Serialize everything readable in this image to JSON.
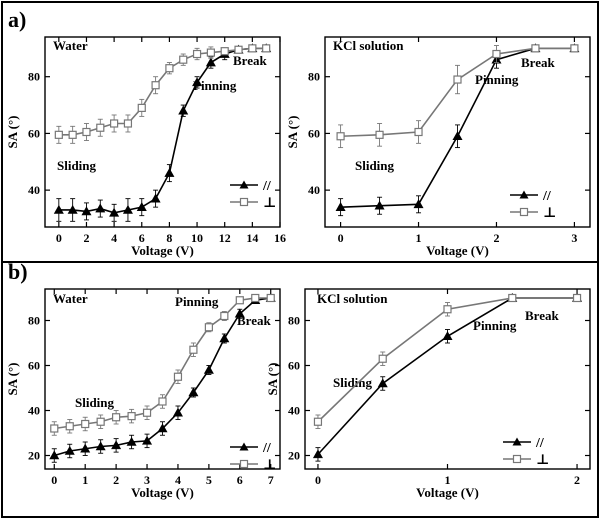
{
  "chart_data": [
    {
      "id": "a-water",
      "type": "line",
      "panel": "a)",
      "annotation": "Water",
      "xlabel": "Voltage (V)",
      "ylabel": "SA (°)",
      "xlim": [
        -1,
        16
      ],
      "ylim": [
        27,
        94
      ],
      "xticks": [
        0,
        2,
        4,
        6,
        8,
        10,
        12,
        14,
        16
      ],
      "yticks": [
        40,
        60,
        80
      ],
      "regions": [
        "Sliding",
        "Pinning",
        "Break"
      ],
      "series": [
        {
          "name": "//",
          "marker": "filled-triangle",
          "x": [
            0,
            1,
            2,
            3,
            4,
            5,
            6,
            7,
            8,
            9,
            10,
            11,
            12,
            13,
            14,
            15
          ],
          "y": [
            33,
            33,
            32.5,
            33.5,
            32,
            33,
            34,
            37,
            46,
            68,
            78,
            85,
            88,
            89.5,
            90,
            90
          ],
          "err": [
            4,
            4,
            3,
            3,
            3,
            4,
            3,
            3,
            3,
            2,
            2,
            2,
            2,
            1,
            1,
            1
          ]
        },
        {
          "name": "⊥",
          "marker": "open-square",
          "x": [
            0,
            1,
            2,
            3,
            4,
            5,
            6,
            7,
            8,
            9,
            10,
            11,
            12,
            13,
            14,
            15
          ],
          "y": [
            59.5,
            59.5,
            60.5,
            62,
            63.5,
            63.5,
            69,
            77,
            83,
            86,
            88,
            88.5,
            89,
            89.5,
            90,
            90
          ],
          "err": [
            3,
            3,
            3,
            3,
            3,
            3,
            3,
            3,
            2,
            2,
            2,
            2,
            1,
            1,
            1,
            1
          ]
        }
      ]
    },
    {
      "id": "a-kcl",
      "type": "line",
      "annotation": "KCl solution",
      "xlabel": "Voltage (V)",
      "ylabel": "SA (°)",
      "xlim": [
        -0.2,
        3.2
      ],
      "ylim": [
        27,
        94
      ],
      "xticks": [
        0,
        1,
        2,
        3
      ],
      "yticks": [
        40,
        60,
        80
      ],
      "regions": [
        "Sliding",
        "Pinning",
        "Break"
      ],
      "series": [
        {
          "name": "//",
          "marker": "filled-triangle",
          "x": [
            0,
            0.5,
            1,
            1.5,
            2,
            2.5,
            3
          ],
          "y": [
            34,
            34.5,
            35,
            59,
            86,
            90,
            90
          ],
          "err": [
            3,
            3,
            3,
            4,
            3,
            1,
            1
          ]
        },
        {
          "name": "⊥",
          "marker": "open-square",
          "x": [
            0,
            0.5,
            1,
            1.5,
            2,
            2.5,
            3
          ],
          "y": [
            59,
            59.5,
            60.5,
            79,
            88,
            90,
            90
          ],
          "err": [
            4,
            4,
            4,
            5,
            3,
            1,
            1
          ]
        }
      ]
    },
    {
      "id": "b-water",
      "type": "line",
      "panel": "b)",
      "annotation": "Water",
      "xlabel": "Voltage (V)",
      "ylabel": "SA (°)",
      "xlim": [
        -0.3,
        7.3
      ],
      "ylim": [
        14,
        94
      ],
      "xticks": [
        0,
        1,
        2,
        3,
        4,
        5,
        6,
        7
      ],
      "yticks": [
        20,
        40,
        60,
        80
      ],
      "regions": [
        "Sliding",
        "Pinning",
        "Break"
      ],
      "series": [
        {
          "name": "//",
          "marker": "filled-triangle",
          "x": [
            0,
            0.5,
            1,
            1.5,
            2,
            2.5,
            3,
            3.5,
            4,
            4.5,
            5,
            5.5,
            6,
            6.5,
            7
          ],
          "y": [
            20,
            22,
            23,
            24,
            24.5,
            26,
            26.5,
            32,
            39,
            48,
            58,
            72,
            83,
            89,
            90
          ],
          "err": [
            3,
            3,
            3,
            3,
            3,
            3,
            3,
            3,
            3,
            2,
            2,
            2,
            2,
            1,
            1
          ]
        },
        {
          "name": "⊥",
          "marker": "open-square",
          "x": [
            0,
            0.5,
            1,
            1.5,
            2,
            2.5,
            3,
            3.5,
            4,
            4.5,
            5,
            5.5,
            6,
            6.5,
            7
          ],
          "y": [
            32,
            33,
            34,
            35,
            37,
            37.5,
            39,
            44,
            55,
            67,
            77,
            82,
            89,
            90,
            90
          ],
          "err": [
            3,
            3,
            3,
            3,
            3,
            3,
            3,
            3,
            3,
            3,
            2,
            2,
            1,
            1,
            1
          ]
        }
      ]
    },
    {
      "id": "b-kcl",
      "type": "line",
      "annotation": "KCl solution",
      "xlabel": "Voltage (V)",
      "ylabel": "SA (°)",
      "xlim": [
        -0.1,
        2.1
      ],
      "ylim": [
        14,
        94
      ],
      "xticks": [
        0,
        1,
        2
      ],
      "yticks": [
        20,
        40,
        60,
        80
      ],
      "regions": [
        "Sliding",
        "Pinning",
        "Break"
      ],
      "series": [
        {
          "name": "//",
          "marker": "filled-triangle",
          "x": [
            0,
            0.5,
            1,
            1.5,
            2
          ],
          "y": [
            20.5,
            52,
            73,
            90,
            90
          ],
          "err": [
            3,
            3,
            3,
            1,
            1
          ]
        },
        {
          "name": "⊥",
          "marker": "open-square",
          "x": [
            0,
            0.5,
            1,
            1.5,
            2
          ],
          "y": [
            35,
            63,
            85,
            90,
            90
          ],
          "err": [
            3,
            3,
            3,
            1,
            1
          ]
        }
      ]
    }
  ]
}
